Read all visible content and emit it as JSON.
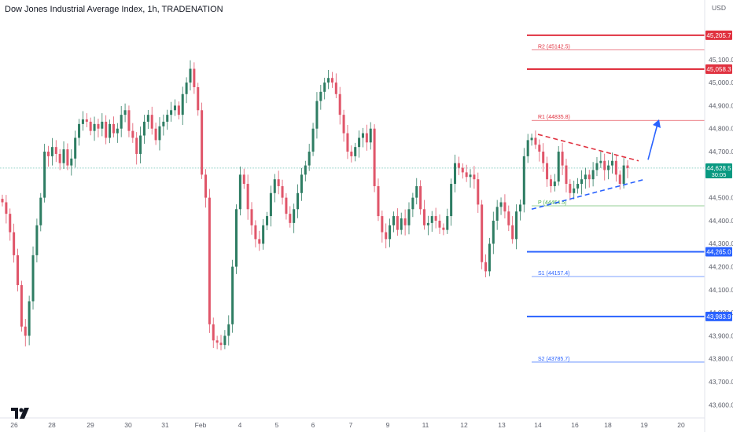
{
  "header": {
    "title": "Dow Jones Industrial Average Index, 1h, TRADENATION",
    "currency": "USD"
  },
  "colors": {
    "up": "#2e7d63",
    "down": "#e0566a",
    "resistance": "#e0313f",
    "support": "#2962ff",
    "pivot": "#4caf50",
    "grid_text": "#5d606b",
    "current": "#089981"
  },
  "chart_data": {
    "type": "candlestick",
    "title": "Dow Jones Industrial Average Index, 1h, TRADENATION",
    "ylim": [
      43550,
      45270
    ],
    "y_ticks": [
      "45,100.0",
      "45,000.0",
      "44,900.0",
      "44,800.0",
      "44,700.0",
      "44,500.0",
      "44,400.0",
      "44,300.0",
      "44,200.0",
      "44,100.0",
      "44,000.0",
      "43,900.0",
      "43,800.0",
      "43,700.0",
      "43,600.0"
    ],
    "y_tick_values": [
      45100,
      45000,
      44900,
      44800,
      44700,
      44500,
      44400,
      44300,
      44200,
      44100,
      44000,
      43900,
      43800,
      43700,
      43600
    ],
    "x_ticks": [
      "26",
      "28",
      "29",
      "30",
      "31",
      "Feb",
      "4",
      "5",
      "6",
      "7",
      "9",
      "11",
      "12",
      "13",
      "14",
      "16",
      "18",
      "19",
      "20"
    ],
    "current_price": "44,628.5",
    "countdown": "30:05",
    "price_badges": [
      {
        "label": "45,205.7",
        "value": 45205.7,
        "kind": "resistance"
      },
      {
        "label": "45,058.3",
        "value": 45058.3,
        "kind": "resistance"
      },
      {
        "label": "44,265.0",
        "value": 44265.0,
        "kind": "support"
      },
      {
        "label": "43,983.9",
        "value": 43983.9,
        "kind": "support"
      }
    ],
    "levels": [
      {
        "label": "R2 (45142.5)",
        "value": 45142.5,
        "kind": "resistance"
      },
      {
        "label": "R1 (44835.8)",
        "value": 44835.8,
        "kind": "resistance"
      },
      {
        "label": "P (44464.5)",
        "value": 44464.5,
        "kind": "pivot"
      },
      {
        "label": "S1 (44157.4)",
        "value": 44157.4,
        "kind": "support"
      },
      {
        "label": "S2 (43785.7)",
        "value": 43785.7,
        "kind": "support"
      }
    ],
    "closes": [
      44480,
      44430,
      44350,
      44250,
      44120,
      43940,
      43900,
      44050,
      44250,
      44380,
      44500,
      44700,
      44680,
      44720,
      44690,
      44650,
      44710,
      44640,
      44670,
      44760,
      44820,
      44840,
      44830,
      44790,
      44820,
      44800,
      44830,
      44760,
      44820,
      44780,
      44800,
      44860,
      44880,
      44790,
      44760,
      44690,
      44770,
      44830,
      44860,
      44800,
      44750,
      44810,
      44830,
      44860,
      44880,
      44900,
      44860,
      44950,
      45000,
      45060,
      44980,
      44880,
      44600,
      44500,
      43950,
      43880,
      43870,
      43860,
      43900,
      43950,
      44200,
      44450,
      44600,
      44560,
      44450,
      44380,
      44320,
      44300,
      44380,
      44420,
      44520,
      44580,
      44550,
      44500,
      44430,
      44390,
      44450,
      44520,
      44600,
      44640,
      44700,
      44800,
      44920,
      44960,
      45000,
      45020,
      45000,
      44950,
      44860,
      44780,
      44700,
      44680,
      44720,
      44760,
      44780,
      44740,
      44800,
      44550,
      44420,
      44350,
      44320,
      44380,
      44420,
      44360,
      44410,
      44380,
      44450,
      44500,
      44550,
      44450,
      44380,
      44390,
      44420,
      44400,
      44370,
      44360,
      44420,
      44560,
      44650,
      44630,
      44610,
      44590,
      44600,
      44580,
      44470,
      44220,
      44180,
      44300,
      44400,
      44460,
      44480,
      44440,
      44380,
      44320,
      44440,
      44470,
      44680,
      44750,
      44760,
      44730,
      44700,
      44650,
      44580,
      44550,
      44570,
      44700,
      44640,
      44560,
      44520,
      44540,
      44560,
      44580,
      44600,
      44580,
      44620,
      44650,
      44660,
      44620,
      44640,
      44660,
      44600,
      44560,
      44640,
      44628.5
    ],
    "pattern": {
      "upper_trendline": {
        "from": 44775,
        "to": 44660
      },
      "lower_trendline": {
        "from": 44450,
        "to": 44580
      },
      "arrow": {
        "from": 44665,
        "to": 44840
      }
    }
  }
}
